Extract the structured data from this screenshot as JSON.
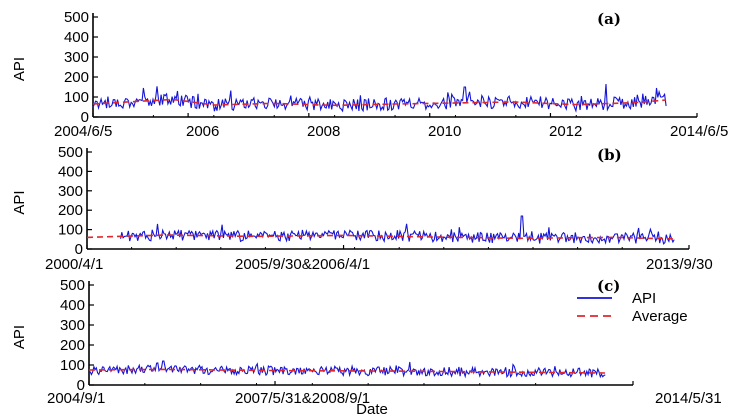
{
  "colors": {
    "api": "#1414d8",
    "average": "#e0282c",
    "axis": "#000000"
  },
  "xlabel": "Date",
  "legend": {
    "api_label": "API",
    "average_label": "Average",
    "placement": "right, inside panel (c)"
  },
  "chart_data": [
    {
      "type": "line",
      "panel": "(a)",
      "ylabel": "API",
      "ylim": [
        0,
        500
      ],
      "yticks": [
        0,
        100,
        200,
        300,
        400,
        500
      ],
      "xtick_labels": [
        "2004/6/5",
        "2006",
        "2008",
        "2010",
        "2012",
        "2014/6/5"
      ],
      "xlim": [
        "2004-06-05",
        "2014-06-05"
      ],
      "grid": false,
      "series": [
        {
          "name": "API",
          "kind": "daily",
          "x_range": [
            "2004-06-05",
            "2013-11-30"
          ],
          "typical_range": [
            30,
            130
          ],
          "peaks": [
            [
              "2005-11-01",
              130
            ],
            [
              "2010-08-01",
              150
            ],
            [
              "2012-12-01",
              165
            ],
            [
              "2013-10-01",
              145
            ]
          ]
        },
        {
          "name": "Average",
          "kind": "smoothed",
          "x_range": [
            "2004-06-05",
            "2013-11-30"
          ],
          "x": [
            "2004-06-05",
            "2005-01-01",
            "2005-10-01",
            "2006-06-01",
            "2007-06-01",
            "2008-06-01",
            "2009-06-01",
            "2010-06-01",
            "2011-06-01",
            "2012-06-01",
            "2013-06-01",
            "2013-11-30"
          ],
          "values": [
            65,
            75,
            88,
            60,
            68,
            58,
            65,
            70,
            75,
            62,
            72,
            85
          ]
        }
      ]
    },
    {
      "type": "line",
      "panel": "(b)",
      "ylabel": "API",
      "ylim": [
        0,
        500
      ],
      "yticks": [
        0,
        100,
        200,
        300,
        400,
        500
      ],
      "xtick_labels": [
        "2000/4/1",
        "2005/9/30&2006/4/1",
        "2013/9/30"
      ],
      "grid": false,
      "series": [
        {
          "name": "API",
          "kind": "daily",
          "x_range": [
            "2001-01-01",
            "2013-06-01"
          ],
          "typical_range": [
            30,
            120
          ],
          "peaks": [
            [
              "2007-06-01",
              130
            ],
            [
              "2010-01-01",
              170
            ]
          ]
        },
        {
          "name": "Average",
          "kind": "smoothed",
          "x_range": [
            "2000-04-01",
            "2013-06-01"
          ],
          "x": [
            "2000-04-01",
            "2002-01-01",
            "2004-01-01",
            "2006-01-01",
            "2008-01-01",
            "2010-01-01",
            "2012-01-01",
            "2013-06-01"
          ],
          "values": [
            60,
            72,
            65,
            70,
            62,
            55,
            60,
            52
          ]
        }
      ]
    },
    {
      "type": "line",
      "panel": "(c)",
      "ylabel": "API",
      "ylim": [
        0,
        500
      ],
      "yticks": [
        0,
        100,
        200,
        300,
        400,
        500
      ],
      "xtick_labels": [
        "2004/9/1",
        "2007/5/31&2008/9/1",
        "2014/5/31"
      ],
      "grid": false,
      "series": [
        {
          "name": "API",
          "kind": "daily",
          "x_range": [
            "2004-09-01",
            "2013-12-01"
          ],
          "typical_range": [
            40,
            115
          ],
          "peaks": [
            [
              "2006-01-01",
              120
            ],
            [
              "2010-06-01",
              115
            ]
          ]
        },
        {
          "name": "Average",
          "kind": "smoothed",
          "x_range": [
            "2004-09-01",
            "2013-12-01"
          ],
          "x": [
            "2004-09-01",
            "2006-01-01",
            "2008-01-01",
            "2010-01-01",
            "2012-01-01",
            "2013-12-01"
          ],
          "values": [
            75,
            78,
            72,
            70,
            65,
            60
          ]
        }
      ]
    }
  ]
}
